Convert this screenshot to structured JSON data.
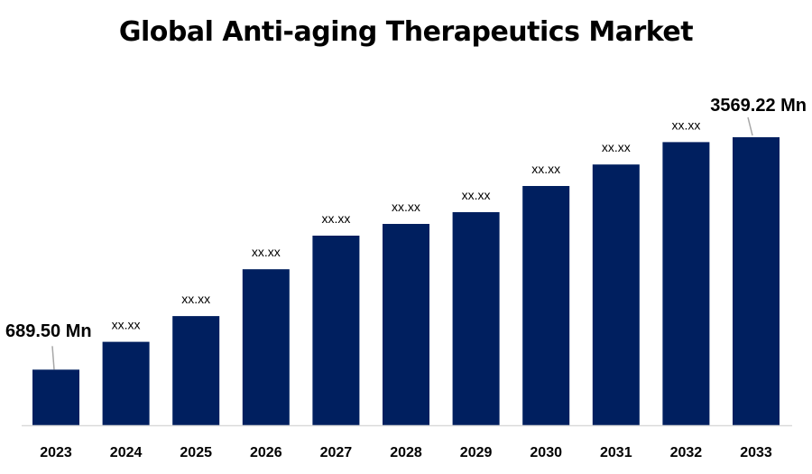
{
  "chart_data": {
    "type": "bar",
    "title": "Global Anti-aging Therapeutics Market",
    "xlabel": "",
    "ylabel": "",
    "categories": [
      "2023",
      "2024",
      "2025",
      "2026",
      "2027",
      "2028",
      "2029",
      "2030",
      "2031",
      "2032",
      "2033"
    ],
    "values": [
      689.5,
      1034,
      1353,
      1933,
      2350,
      2495,
      2641,
      2965,
      3231,
      3509,
      3569.22
    ],
    "data_labels": [
      "689.50 Mn",
      "xx.xx",
      "xx.xx",
      "xx.xx",
      "xx.xx",
      "xx.xx",
      "xx.xx",
      "xx.xx",
      "xx.xx",
      "xx.xx",
      "3569.22 Mn"
    ],
    "ylim": [
      0,
      3569.22
    ],
    "grid": false,
    "legend": "none",
    "bar_color": "#001F5F",
    "axis_color": "#D9D9D9",
    "leader_line_color": "#A6A6A6"
  }
}
